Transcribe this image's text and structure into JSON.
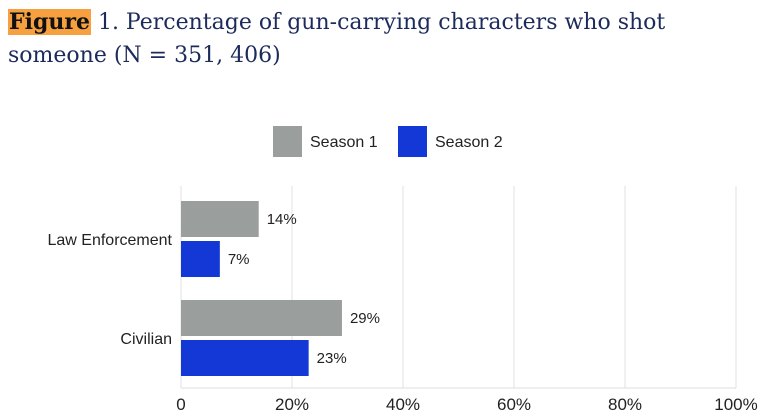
{
  "title": {
    "label": "Figure",
    "text": " 1. Percentage of gun-carrying characters who shot someone (N = 351, 406)"
  },
  "chart_data": {
    "type": "bar",
    "orientation": "horizontal",
    "categories": [
      "Law Enforcement",
      "Civilian"
    ],
    "series": [
      {
        "name": "Season 1",
        "color": "#9a9e9c",
        "values": [
          14,
          29
        ],
        "labels": [
          "14%",
          "29%"
        ]
      },
      {
        "name": "Season 2",
        "color": "#1338d6",
        "values": [
          7,
          23
        ],
        "labels": [
          "7%",
          "23%"
        ]
      }
    ],
    "xlim": [
      0,
      100
    ],
    "xticks": [
      0,
      20,
      40,
      60,
      80,
      100
    ],
    "xtick_labels": [
      "0",
      "20%",
      "40%",
      "60%",
      "80%",
      "100%"
    ],
    "grid": true,
    "legend": "top-center"
  }
}
